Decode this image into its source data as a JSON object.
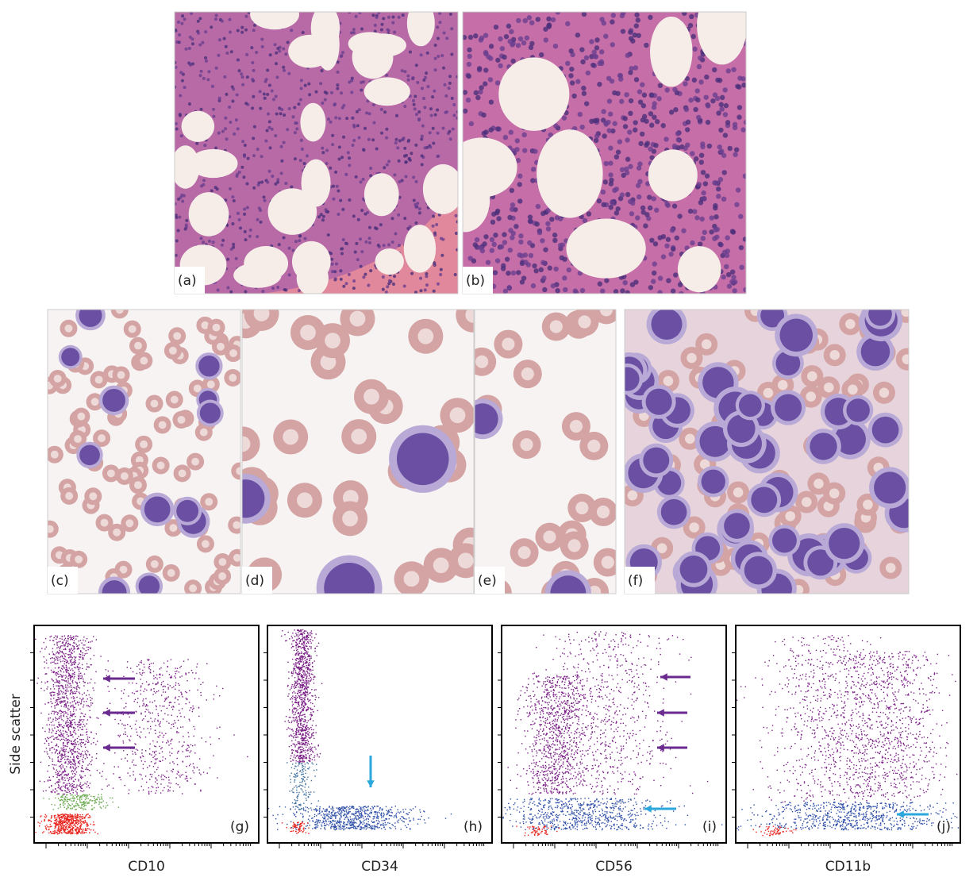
{
  "micrographs": [
    {
      "label": "(a)"
    },
    {
      "label": "(b)"
    },
    {
      "label": "(c)"
    },
    {
      "label": "(d)"
    },
    {
      "label": "(e)"
    },
    {
      "label": "(f)"
    }
  ],
  "flow_plots": [
    {
      "label": "(g)",
      "x_axis_label": "CD10"
    },
    {
      "label": "(h)",
      "x_axis_label": "CD34"
    },
    {
      "label": "(i)",
      "x_axis_label": "CD56"
    },
    {
      "label": "(j)",
      "x_axis_label": "CD11b"
    }
  ],
  "y_axis_label": "Side scatter"
}
